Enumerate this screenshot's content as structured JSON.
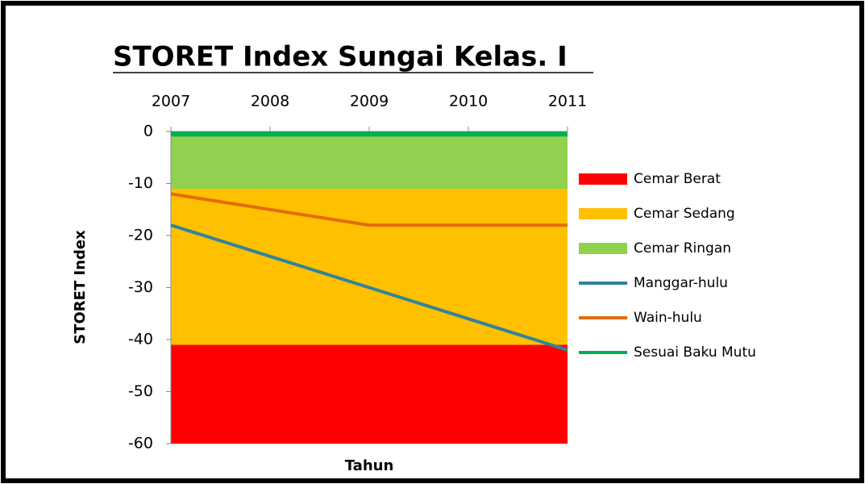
{
  "chart_data": {
    "type": "area-line",
    "title": "STORET Index Sungai Kelas. I",
    "xlabel": "Tahun",
    "ylabel": "STORET Index",
    "x": [
      2007,
      2008,
      2009,
      2010,
      2011
    ],
    "xlim": [
      2007,
      2011
    ],
    "xticks": [
      2007,
      2008,
      2009,
      2010,
      2011
    ],
    "ylim": [
      -60,
      0
    ],
    "yticks": [
      0,
      -10,
      -20,
      -30,
      -40,
      -50,
      -60
    ],
    "legend": "right",
    "series": [
      {
        "name": "Cemar Berat",
        "color": "#ff0000",
        "kind": "area",
        "values": [
          -19,
          -19,
          -19,
          -19,
          -19
        ]
      },
      {
        "name": "Cemar Sedang",
        "color": "#ffc000",
        "kind": "area",
        "values": [
          -30,
          -30,
          -30,
          -30,
          -30
        ]
      },
      {
        "name": "Cemar Ringan",
        "color": "#92d050",
        "kind": "area",
        "values": [
          -11,
          -11,
          -11,
          -11,
          -11
        ]
      },
      {
        "name": "Manggar-hulu",
        "color": "#31849b",
        "kind": "line",
        "values": [
          -18,
          -24,
          -30,
          -36,
          -42
        ]
      },
      {
        "name": "Wain-hulu",
        "color": "#e46c0a",
        "kind": "line",
        "values": [
          -12,
          -15,
          -18,
          -18,
          -18
        ]
      },
      {
        "name": "Sesuai Baku Mutu",
        "color": "#00b050",
        "kind": "line",
        "values": [
          -0.5,
          -0.5,
          -0.5,
          -0.5,
          -0.5
        ]
      }
    ]
  }
}
